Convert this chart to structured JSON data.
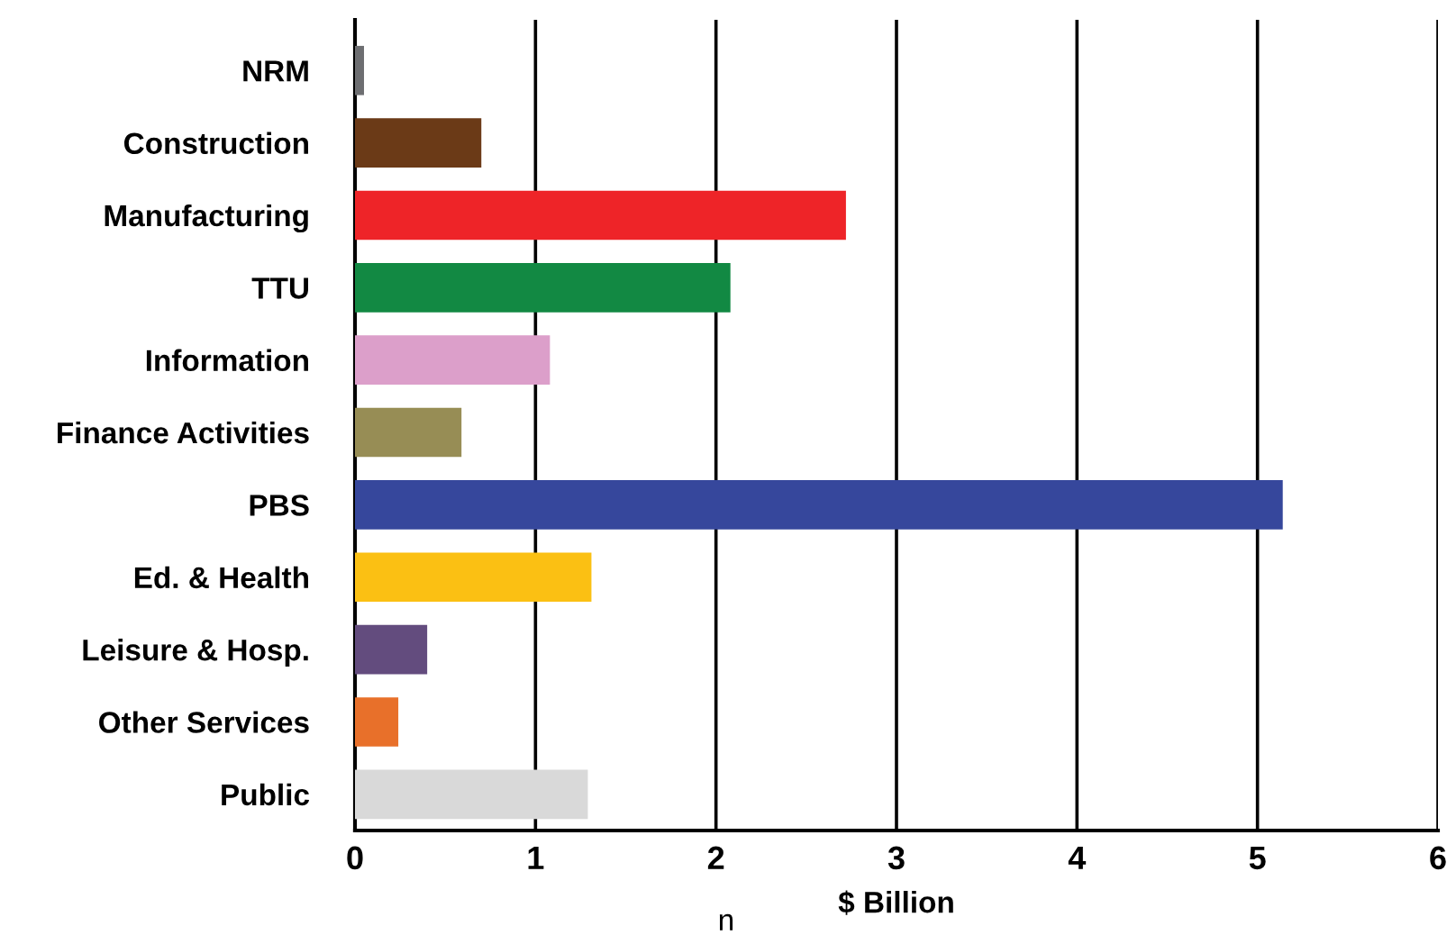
{
  "chart_data": {
    "type": "bar",
    "orientation": "horizontal",
    "xlabel": "$ Billion",
    "categories": [
      "NRM",
      "Construction",
      "Manufacturing",
      "TTU",
      "Information",
      "Finance Activities",
      "PBS",
      "Ed. & Health",
      "Leisure & Hosp.",
      "Other Services",
      "Public"
    ],
    "values": [
      0.05,
      0.7,
      2.72,
      2.08,
      1.08,
      0.59,
      5.14,
      1.31,
      0.4,
      0.24,
      1.29
    ],
    "colors": [
      "#6d6e71",
      "#6b3a17",
      "#ee2428",
      "#128943",
      "#dc9fca",
      "#978d55",
      "#36479c",
      "#fbc013",
      "#634c7e",
      "#e8702a",
      "#d9d9d9"
    ],
    "xlim": [
      0,
      6
    ],
    "xticks": [
      0,
      1,
      2,
      3,
      4,
      5,
      6
    ],
    "grid": "x",
    "annotations": [
      "n"
    ]
  }
}
